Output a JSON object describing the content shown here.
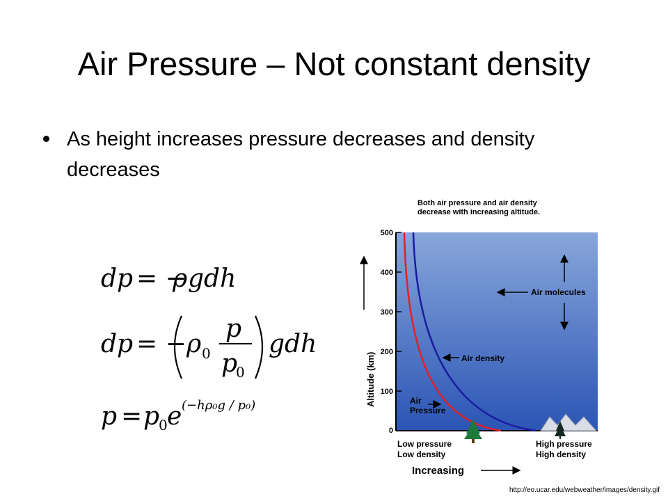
{
  "slide": {
    "title": "Air Pressure – Not constant density",
    "bullets": [
      "As height increases pressure decreases and density decreases"
    ]
  },
  "equations": {
    "eq1": {
      "lhs": "dp",
      "rhs_sign": "= −",
      "rho": "ρ",
      "rest": "gdh"
    },
    "eq2": {
      "lhs": "dp",
      "rhs_sign": "= −",
      "rho": "ρ",
      "rho_sub": "0",
      "num": "p",
      "den": "p",
      "den_sub": "0",
      "rest": "gdh"
    },
    "eq3": {
      "lhs": "p",
      "eq": "=",
      "p": "p",
      "p_sub": "0",
      "e": "e",
      "exponent": "(−hρ₀g / p₀)"
    }
  },
  "figure": {
    "caption_line1": "Both air pressure and air density",
    "caption_line2": "decrease with increasing altitude.",
    "y_axis_label": "Altitude (km)",
    "y_ticks": [
      "0",
      "100",
      "200",
      "300",
      "400",
      "500"
    ],
    "labels": {
      "air_molecules": "Air molecules",
      "air_density": "Air density",
      "air_pressure_1": "Air",
      "air_pressure_2": "Pressure",
      "low_1": "Low pressure",
      "low_2": "Low density",
      "high_1": "High pressure",
      "high_2": "High density",
      "increasing": "Increasing"
    },
    "colors": {
      "sky_top": "#7fa0d8",
      "sky_bottom": "#2e5ab8",
      "pressure_curve": "#e0202a",
      "density_curve": "#1a1aa0",
      "tree": "#1e7a3a"
    }
  },
  "source_url": "http://eo.ucar.edu/webweather/images/density.gif"
}
